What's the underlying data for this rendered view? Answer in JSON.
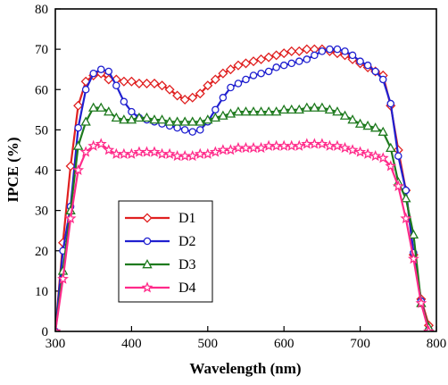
{
  "chart_data": {
    "type": "line",
    "title": "",
    "xlabel": "Wavelength (nm)",
    "ylabel": "IPCE (%)",
    "xlim": [
      300,
      800
    ],
    "ylim": [
      0,
      80
    ],
    "xticks": [
      300,
      400,
      500,
      600,
      700,
      800
    ],
    "yticks": [
      0,
      10,
      20,
      30,
      40,
      50,
      60,
      70,
      80
    ],
    "grid": false,
    "legend_position": "center-left",
    "series": [
      {
        "name": "D1",
        "color": "#e02020",
        "marker": "diamond",
        "x": [
          300,
          310,
          320,
          330,
          340,
          350,
          360,
          370,
          380,
          390,
          400,
          410,
          420,
          430,
          440,
          450,
          460,
          470,
          480,
          490,
          500,
          510,
          520,
          530,
          540,
          550,
          560,
          570,
          580,
          590,
          600,
          610,
          620,
          630,
          640,
          650,
          660,
          670,
          680,
          690,
          700,
          710,
          720,
          730,
          740,
          750,
          760,
          770,
          780,
          790
        ],
        "values": [
          0,
          22,
          41,
          56,
          62,
          63.5,
          64,
          62.5,
          62.5,
          62,
          62,
          61.5,
          61.5,
          61.5,
          61,
          60,
          58.5,
          57.5,
          58,
          59,
          61,
          62.5,
          64,
          65,
          66,
          66.5,
          67,
          67.5,
          68,
          68.5,
          69,
          69.5,
          69.5,
          70,
          70,
          70,
          69.5,
          69,
          68.5,
          67.5,
          66.5,
          65.5,
          64.5,
          63.5,
          56,
          45,
          35,
          19,
          8,
          1.5
        ]
      },
      {
        "name": "D2",
        "color": "#2020d0",
        "marker": "circle",
        "x": [
          300,
          310,
          320,
          330,
          340,
          350,
          360,
          370,
          380,
          390,
          400,
          410,
          420,
          430,
          440,
          450,
          460,
          470,
          480,
          490,
          500,
          510,
          520,
          530,
          540,
          550,
          560,
          570,
          580,
          590,
          600,
          610,
          620,
          630,
          640,
          650,
          660,
          670,
          680,
          690,
          700,
          710,
          720,
          730,
          740,
          750,
          760,
          770,
          780,
          790
        ],
        "values": [
          0,
          20,
          31,
          50.5,
          60,
          64,
          65,
          64.5,
          61,
          57,
          54.5,
          53,
          52.5,
          52,
          51.5,
          51,
          50.5,
          50,
          49.5,
          50,
          52,
          55,
          58,
          60.5,
          61.5,
          62.5,
          63.5,
          64,
          64.5,
          65.5,
          66,
          66.5,
          67,
          67.5,
          68.5,
          69.5,
          70,
          70,
          69.5,
          68.5,
          67,
          66,
          64.5,
          62.5,
          56.5,
          43.5,
          35,
          19.5,
          7.5,
          0.5
        ]
      },
      {
        "name": "D3",
        "color": "#1e7a1e",
        "marker": "triangle",
        "x": [
          300,
          310,
          320,
          330,
          340,
          350,
          360,
          370,
          380,
          390,
          400,
          410,
          420,
          430,
          440,
          450,
          460,
          470,
          480,
          490,
          500,
          510,
          520,
          530,
          540,
          550,
          560,
          570,
          580,
          590,
          600,
          610,
          620,
          630,
          640,
          650,
          660,
          670,
          680,
          690,
          700,
          710,
          720,
          730,
          740,
          750,
          760,
          770,
          780,
          790
        ],
        "values": [
          0,
          15,
          30,
          46,
          52,
          55.5,
          55.5,
          54.5,
          53,
          52.5,
          52.5,
          53,
          53,
          52.5,
          52.5,
          52,
          52,
          52,
          52,
          52,
          52.5,
          53,
          53.5,
          54,
          54.5,
          54.5,
          54.5,
          54.5,
          54.5,
          54.5,
          55,
          55,
          55,
          55.5,
          55.5,
          55.5,
          55,
          54.5,
          53.5,
          52.5,
          51.5,
          51,
          50.5,
          49.5,
          45.5,
          37,
          33,
          24,
          7,
          1
        ]
      },
      {
        "name": "D4",
        "color": "#ff2a8a",
        "marker": "star",
        "x": [
          300,
          310,
          320,
          330,
          340,
          350,
          360,
          370,
          380,
          390,
          400,
          410,
          420,
          430,
          440,
          450,
          460,
          470,
          480,
          490,
          500,
          510,
          520,
          530,
          540,
          550,
          560,
          570,
          580,
          590,
          600,
          610,
          620,
          630,
          640,
          650,
          660,
          670,
          680,
          690,
          700,
          710,
          720,
          730,
          740,
          750,
          760,
          770,
          780,
          790
        ],
        "values": [
          0,
          13,
          28,
          40,
          44.5,
          46,
          46.5,
          45,
          44,
          44,
          44,
          44.5,
          44.5,
          44.5,
          44,
          44,
          43.5,
          43.5,
          43.5,
          44,
          44,
          44.5,
          45,
          45,
          45.5,
          45.5,
          45.5,
          45.5,
          46,
          46,
          46,
          46,
          46,
          46.5,
          46.5,
          46.5,
          46,
          46,
          45.5,
          45,
          44.5,
          44,
          43.5,
          43,
          41,
          36,
          28,
          18,
          7,
          0
        ]
      }
    ]
  }
}
